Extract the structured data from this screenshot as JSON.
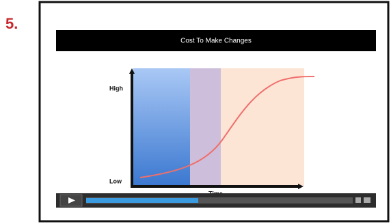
{
  "label": "5.",
  "video": {
    "title": "Cost To Make Changes",
    "y_axis": {
      "high": "High",
      "low": "Low"
    },
    "x_axis": "Time"
  }
}
